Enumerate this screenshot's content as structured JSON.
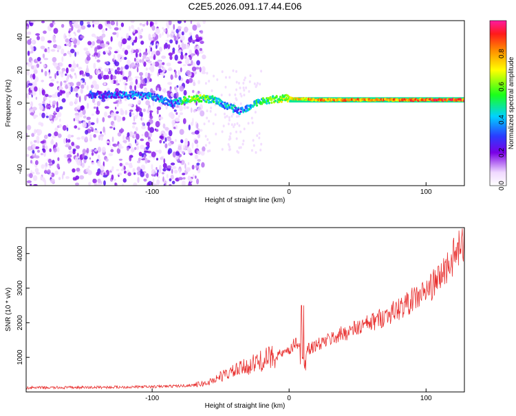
{
  "title": "C2E5.2026.091.17.44.E06",
  "colorbar": {
    "label": "Normalized spectral amplitude",
    "ticks": [
      "0.0",
      "0.2",
      "0.4",
      "0.6",
      "0.8"
    ],
    "range": [
      0,
      1
    ]
  },
  "chart_data": [
    {
      "type": "heatmap",
      "title": "C2E5.2026.091.17.44.E06",
      "xlabel": "Height of straight line (km)",
      "ylabel": "Frequency (Hz)",
      "xlim": [
        -192,
        128
      ],
      "ylim": [
        -50,
        50
      ],
      "xticks": [
        -100,
        0,
        100
      ],
      "xtick_labels": [
        "-100",
        "0",
        "100"
      ],
      "yticks": [
        -40,
        -20,
        0,
        20,
        40
      ],
      "ytick_labels": [
        "-40",
        "-20",
        "0",
        "20",
        "40"
      ],
      "series": [
        {
          "name": "dominant frequency ridge",
          "x": [
            -140,
            -120,
            -100,
            -85,
            -75,
            -65,
            -55,
            -45,
            -35,
            -25,
            -15,
            0,
            20,
            50,
            100,
            128
          ],
          "y": [
            5,
            5,
            4,
            0,
            2,
            3,
            2,
            -2,
            -5,
            0,
            2,
            3,
            2,
            2,
            2,
            2
          ],
          "amplitude": [
            0.25,
            0.3,
            0.35,
            0.3,
            0.55,
            0.6,
            0.45,
            0.4,
            0.35,
            0.45,
            0.55,
            0.65,
            0.8,
            0.8,
            0.85,
            0.85
          ]
        }
      ],
      "background_noise_extent_x": [
        -192,
        -62
      ]
    },
    {
      "type": "line",
      "xlabel": "Height of straight line (km)",
      "ylabel": "SNR (10 * v/v)",
      "xlim": [
        -192,
        128
      ],
      "ylim": [
        0,
        4750
      ],
      "xticks": [
        -100,
        0,
        100
      ],
      "xtick_labels": [
        "-100",
        "0",
        "100"
      ],
      "yticks": [
        1000,
        2000,
        3000,
        4000
      ],
      "ytick_labels": [
        "1000",
        "2000",
        "3000",
        "4000"
      ],
      "color": "#e8302f",
      "series": [
        {
          "name": "SNR",
          "x": [
            -192,
            -150,
            -100,
            -75,
            -60,
            -50,
            -40,
            -30,
            -20,
            -10,
            0,
            5,
            10,
            15,
            20,
            40,
            60,
            80,
            100,
            110,
            120,
            128
          ],
          "y": [
            120,
            130,
            150,
            180,
            250,
            450,
            600,
            750,
            900,
            1050,
            1150,
            1450,
            1300,
            1250,
            1350,
            1700,
            2000,
            2400,
            2900,
            3300,
            3900,
            4300
          ]
        }
      ]
    }
  ]
}
